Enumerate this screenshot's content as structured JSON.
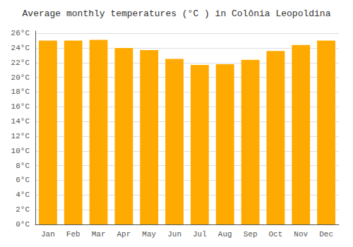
{
  "chart_data": {
    "type": "bar",
    "title": "Average monthly temperatures (°C ) in Colônia Leopoldina",
    "categories": [
      "Jan",
      "Feb",
      "Mar",
      "Apr",
      "May",
      "Jun",
      "Jul",
      "Aug",
      "Sep",
      "Oct",
      "Nov",
      "Dec"
    ],
    "values": [
      25.0,
      25.0,
      25.1,
      24.0,
      23.7,
      22.5,
      21.7,
      21.8,
      22.4,
      23.6,
      24.4,
      25.0
    ],
    "color": "#FFAA00",
    "ylim": [
      0,
      26.3
    ],
    "yticks": [
      {
        "value": 0,
        "label": "0°C"
      },
      {
        "value": 2,
        "label": "2°C"
      },
      {
        "value": 4,
        "label": "4°C"
      },
      {
        "value": 6,
        "label": "6°C"
      },
      {
        "value": 8,
        "label": "8°C"
      },
      {
        "value": 10,
        "label": "10°C"
      },
      {
        "value": 12,
        "label": "12°C"
      },
      {
        "value": 14,
        "label": "14°C"
      },
      {
        "value": 16,
        "label": "16°C"
      },
      {
        "value": 18,
        "label": "18°C"
      },
      {
        "value": 20,
        "label": "20°C"
      },
      {
        "value": 22,
        "label": "22°C"
      },
      {
        "value": 24,
        "label": "24°C"
      },
      {
        "value": 26,
        "label": "26°C"
      }
    ],
    "grid": true
  }
}
